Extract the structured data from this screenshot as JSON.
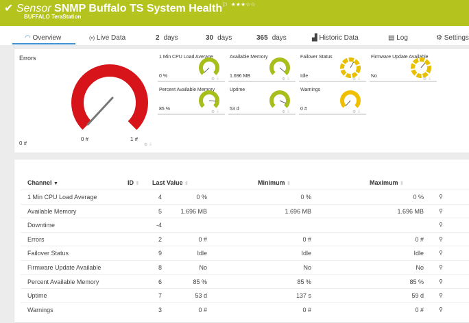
{
  "header": {
    "prefix": "Sensor",
    "title": "SNMP Buffalo TS System Health",
    "subtitle": "BUFFALO TeraStation",
    "stars": "★★★☆☆",
    "color": "#b4c31e"
  },
  "tabs": [
    {
      "icon": "gauge-icon",
      "label": "Overview"
    },
    {
      "icon": "live-icon",
      "label": "Live Data"
    },
    {
      "num": "2",
      "label": "days"
    },
    {
      "num": "30",
      "label": "days"
    },
    {
      "num": "365",
      "label": "days"
    },
    {
      "icon": "chart-icon",
      "label": "Historic Data"
    },
    {
      "icon": "log-icon",
      "label": "Log"
    },
    {
      "icon": "gear-icon",
      "label": "Settings"
    }
  ],
  "errors_gauge": {
    "label": "Errors",
    "min": "0 #",
    "mid": "0 #",
    "max": "1 #",
    "color": "#d7141a"
  },
  "tiles": [
    {
      "label": "1 Min CPU Load Average",
      "value": "0 %",
      "color": "#a8be1c"
    },
    {
      "label": "Available Memory",
      "value": "1.696 MB",
      "color": "#a8be1c"
    },
    {
      "label": "Failover Status",
      "value": "Idle",
      "color": "#e8c000"
    },
    {
      "label": "Firmware Update Available",
      "value": "No",
      "color": "#e8c000"
    },
    {
      "label": "Percent Available Memory",
      "value": "85 %",
      "color": "#a8be1c"
    },
    {
      "label": "Uptime",
      "value": "53 d",
      "color": "#a8be1c"
    },
    {
      "label": "Warnings",
      "value": "0 #",
      "color": "#f0c000"
    }
  ],
  "table": {
    "headers": {
      "channel": "Channel",
      "id": "ID",
      "last": "Last Value",
      "min": "Minimum",
      "max": "Maximum"
    },
    "rows": [
      [
        "1 Min CPU Load Average",
        "4",
        "0 %",
        "0 %",
        "0 %"
      ],
      [
        "Available Memory",
        "5",
        "1.696 MB",
        "1.696 MB",
        "1.696 MB"
      ],
      [
        "Downtime",
        "-4",
        "",
        "",
        ""
      ],
      [
        "Errors",
        "2",
        "0 #",
        "0 #",
        "0 #"
      ],
      [
        "Failover Status",
        "9",
        "Idle",
        "Idle",
        "Idle"
      ],
      [
        "Firmware Update Available",
        "8",
        "No",
        "No",
        "No"
      ],
      [
        "Percent Available Memory",
        "6",
        "85 %",
        "85 %",
        "85 %"
      ],
      [
        "Uptime",
        "7",
        "53 d",
        "137 s",
        "59 d"
      ],
      [
        "Warnings",
        "3",
        "0 #",
        "0 #",
        "0 #"
      ]
    ]
  }
}
